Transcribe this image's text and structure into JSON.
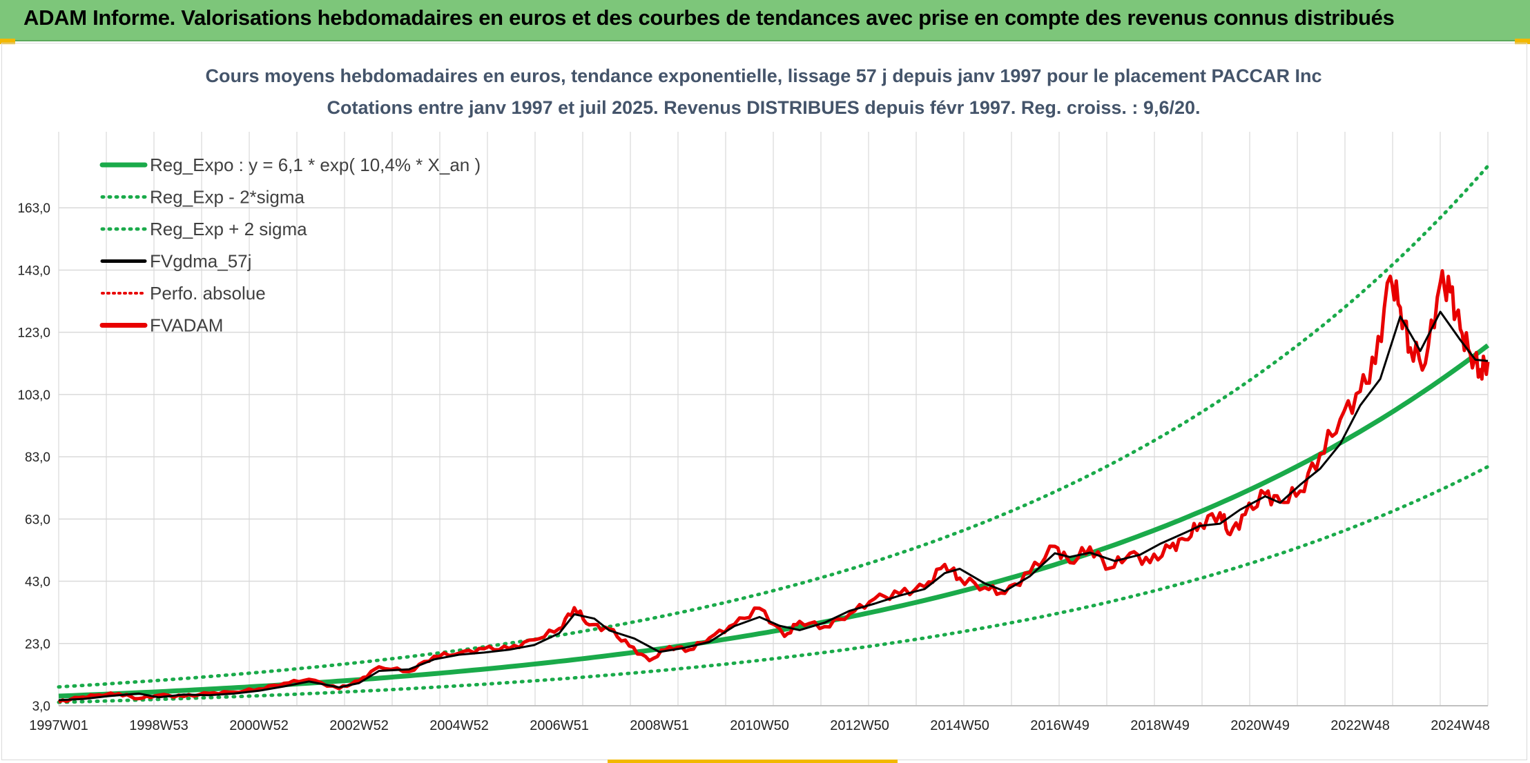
{
  "banner": {
    "title": "ADAM Informe. Valorisations hebdomadaires en euros et des courbes de tendances avec prise en compte des revenus connus distribués"
  },
  "colors": {
    "banner_bg": "#7dc67a",
    "regression": "#1aaa4a",
    "series_black": "#000000",
    "series_red": "#e80000",
    "grid": "#d9d9d9",
    "text": "#44546a"
  },
  "chart_data": {
    "type": "line",
    "title": "Cours moyens hebdomadaires en euros, tendance exponentielle, lissage 57 j depuis janv 1997 pour le placement PACCAR Inc",
    "subtitle": "Cotations entre janv 1997 et juil 2025. Revenus DISTRIBUES depuis févr 1997. Reg. croiss. : 9,6/20.",
    "xlabel": "",
    "ylabel": "",
    "ylim": [
      3.0,
      183.0
    ],
    "xlim": [
      1997.0,
      2025.55
    ],
    "y_ticks": [
      "3,0",
      "23,0",
      "43,0",
      "63,0",
      "83,0",
      "103,0",
      "123,0",
      "143,0",
      "163,0"
    ],
    "x_tick_labels": [
      "1997W01",
      "1998W53",
      "2000W52",
      "2002W52",
      "2004W52",
      "2006W51",
      "2008W51",
      "2010W50",
      "2012W50",
      "2014W50",
      "2016W49",
      "2018W49",
      "2020W49",
      "2022W48",
      "2024W48"
    ],
    "grid": true,
    "legend_position": "top-left",
    "legend": [
      {
        "label": "Reg_Expo : y = 6,1 * exp( 10,4% *  X_an )",
        "style": "solid-green"
      },
      {
        "label": "Reg_Exp - 2*sigma",
        "style": "dotted-green"
      },
      {
        "label": "Reg_Exp + 2 sigma",
        "style": "dotted-green"
      },
      {
        "label": "FVgdma_57j",
        "style": "solid-black"
      },
      {
        "label": "Perfo. absolue",
        "style": "dotted-red"
      },
      {
        "label": "FVADAM",
        "style": "solid-red"
      }
    ],
    "regression": {
      "a": 6.1,
      "b": 0.104,
      "x0": 1997.0
    },
    "series": [
      {
        "name": "Reg_Expo : y = 6,1 * exp( 10,4% *  X_an )",
        "type": "curve",
        "x": [
          1997.0,
          1999.0,
          2001.0,
          2003.0,
          2005.0,
          2007.0,
          2009.0,
          2011.0,
          2013.0,
          2015.0,
          2017.0,
          2019.0,
          2021.0,
          2023.0,
          2025.55
        ],
        "y": [
          6.1,
          7.5,
          9.2,
          11.3,
          13.9,
          17.1,
          21.0,
          25.9,
          31.8,
          39.1,
          48.1,
          59.1,
          72.7,
          89.4,
          120.0
        ]
      },
      {
        "name": "Reg_Exp - 2*sigma",
        "type": "curve",
        "x": [
          1997.0,
          1999.0,
          2001.0,
          2003.0,
          2005.0,
          2007.0,
          2009.0,
          2011.0,
          2013.0,
          2015.0,
          2017.0,
          2019.0,
          2021.0,
          2023.0,
          2025.55
        ],
        "y": [
          4.1,
          5.0,
          6.2,
          7.6,
          9.4,
          11.5,
          14.2,
          17.4,
          21.4,
          26.3,
          32.4,
          39.8,
          49.0,
          60.2,
          81.0
        ]
      },
      {
        "name": "Reg_Exp + 2 sigma",
        "type": "curve",
        "x": [
          1997.0,
          1999.0,
          2001.0,
          2003.0,
          2005.0,
          2007.0,
          2009.0,
          2011.0,
          2013.0,
          2015.0,
          2017.0,
          2019.0,
          2021.0,
          2023.0,
          2025.55
        ],
        "y": [
          9.0,
          11.1,
          13.6,
          16.8,
          20.6,
          25.4,
          31.2,
          38.3,
          47.1,
          58.0,
          71.3,
          87.7,
          107.8,
          132.6,
          178.0
        ]
      },
      {
        "name": "FVgdma_57j",
        "type": "line",
        "x": [
          1997.0,
          1997.5,
          1998.0,
          1998.6,
          1999.0,
          1999.5,
          2000.0,
          2000.5,
          2001.0,
          2001.5,
          2002.0,
          2002.6,
          2003.0,
          2003.4,
          2004.0,
          2004.5,
          2005.0,
          2005.5,
          2006.0,
          2006.5,
          2007.0,
          2007.3,
          2007.7,
          2008.0,
          2008.5,
          2009.0,
          2009.5,
          2010.0,
          2010.5,
          2011.0,
          2011.4,
          2011.8,
          2012.3,
          2012.8,
          2013.3,
          2013.8,
          2014.3,
          2014.7,
          2015.0,
          2015.5,
          2015.9,
          2016.4,
          2016.9,
          2017.2,
          2017.6,
          2018.1,
          2018.6,
          2019.0,
          2019.5,
          2019.8,
          2020.2,
          2020.6,
          2021.1,
          2021.4,
          2021.8,
          2022.2,
          2022.6,
          2023.0,
          2023.4,
          2023.8,
          2024.2,
          2024.6,
          2025.0,
          2025.3,
          2025.55
        ],
        "y": [
          4.8,
          5.2,
          6.1,
          6.9,
          5.7,
          6.6,
          6.4,
          6.9,
          7.8,
          9.2,
          10.8,
          8.9,
          10.3,
          14.2,
          14.7,
          17.9,
          19.4,
          20.1,
          21.0,
          22.5,
          26.3,
          32.4,
          31.0,
          27.2,
          24.6,
          20.3,
          21.6,
          23.5,
          28.6,
          31.5,
          28.7,
          27.3,
          29.7,
          33.5,
          35.8,
          38.4,
          40.5,
          45.6,
          47.0,
          42.3,
          39.8,
          44.6,
          52.0,
          50.8,
          52.2,
          49.5,
          51.5,
          55.0,
          58.6,
          60.8,
          61.5,
          66.0,
          70.3,
          68.2,
          74.0,
          79.2,
          87.1,
          99.5,
          108.0,
          128.1,
          117.0,
          129.6,
          120.5,
          114.2,
          113.8
        ]
      },
      {
        "name": "FVADAM",
        "type": "line",
        "x": [
          1997.0,
          1997.4,
          1997.8,
          1998.2,
          1998.6,
          1999.0,
          1999.5,
          2000.0,
          2000.5,
          2001.0,
          2001.5,
          2002.0,
          2002.6,
          2003.0,
          2003.4,
          2004.0,
          2004.5,
          2005.0,
          2005.5,
          2006.0,
          2006.5,
          2007.0,
          2007.3,
          2007.6,
          2008.0,
          2008.4,
          2008.8,
          2009.2,
          2009.6,
          2010.0,
          2010.5,
          2011.0,
          2011.5,
          2011.8,
          2012.3,
          2012.8,
          2013.3,
          2013.8,
          2014.3,
          2014.7,
          2015.0,
          2015.5,
          2015.9,
          2016.4,
          2016.9,
          2017.2,
          2017.6,
          2018.0,
          2018.4,
          2018.8,
          2019.2,
          2019.5,
          2019.8,
          2020.2,
          2020.4,
          2020.7,
          2021.1,
          2021.4,
          2021.8,
          2022.2,
          2022.6,
          2023.0,
          2023.3,
          2023.6,
          2023.8,
          2024.0,
          2024.3,
          2024.6,
          2024.8,
          2025.0,
          2025.2,
          2025.4,
          2025.55
        ],
        "y": [
          4.2,
          5.6,
          6.5,
          6.9,
          5.3,
          6.4,
          6.0,
          7.0,
          7.4,
          8.4,
          10.2,
          11.5,
          8.5,
          11.0,
          15.5,
          14.0,
          18.9,
          19.9,
          21.3,
          21.4,
          24.2,
          27.8,
          34.5,
          29.0,
          27.6,
          22.2,
          17.5,
          22.0,
          21.0,
          24.8,
          29.2,
          34.3,
          25.3,
          30.1,
          28.4,
          32.5,
          37.4,
          39.0,
          41.2,
          48.4,
          44.0,
          41.0,
          39.1,
          45.8,
          54.2,
          49.0,
          54.0,
          47.2,
          52.0,
          49.0,
          53.8,
          56.4,
          61.5,
          65.0,
          58.0,
          64.5,
          71.0,
          68.5,
          72.0,
          84.0,
          95.0,
          104.0,
          113.0,
          141.0,
          131.0,
          118.0,
          113.0,
          139.0,
          136.0,
          124.0,
          116.0,
          111.0,
          113.5
        ]
      }
    ]
  }
}
